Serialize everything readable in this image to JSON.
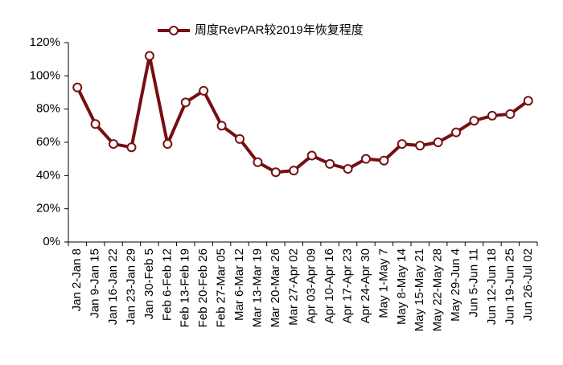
{
  "chart_data": {
    "type": "line",
    "categories": [
      "Jan 2-Jan 8",
      "Jan 9-Jan 15",
      "Jan 16-Jan 22",
      "Jan 23-Jan 29",
      "Jan 30-Feb 5",
      "Feb 6-Feb 12",
      "Feb 13-Feb 19",
      "Feb 20-Feb 26",
      "Feb 27-Mar 05",
      "Mar 6-Mar 12",
      "Mar 13-Mar 19",
      "Mar 20-Mar 26",
      "Mar 27-Apr 02",
      "Apr 03-Apr 09",
      "Apr 10-Apr 16",
      "Apr 17-Apr 23",
      "Apr 24-Apr 30",
      "May 1-May 7",
      "May 8-May 14",
      "May 15-May 21",
      "May 22-May 28",
      "May 29-Jun 4",
      "Jun 5-Jun 11",
      "Jun 12-Jun 18",
      "Jun 19-Jun 25",
      "Jun 26-Jul 02"
    ],
    "series": [
      {
        "name": "周度RevPAR较2019年恢复程度",
        "color": "#760f12",
        "values": [
          93,
          71,
          59,
          57,
          112,
          59,
          84,
          91,
          70,
          62,
          48,
          42,
          43,
          52,
          47,
          44,
          50,
          49,
          59,
          58,
          60,
          66,
          73,
          76,
          77,
          85
        ]
      }
    ],
    "ylim": [
      0,
      120
    ],
    "yticks": [
      {
        "value": 0,
        "label": "0%"
      },
      {
        "value": 20,
        "label": "20%"
      },
      {
        "value": 40,
        "label": "40%"
      },
      {
        "value": 60,
        "label": "60%"
      },
      {
        "value": 80,
        "label": "80%"
      },
      {
        "value": 100,
        "label": "100%"
      },
      {
        "value": 120,
        "label": "120%"
      }
    ],
    "legend": "top",
    "grid": false
  }
}
